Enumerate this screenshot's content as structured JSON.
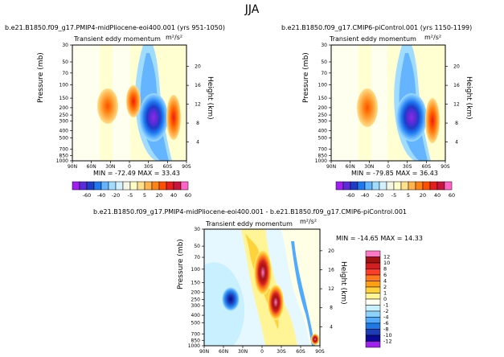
{
  "super_title": "JJA",
  "units": "m²/s²",
  "panels": [
    {
      "id": "mid-pliocene",
      "case": "b.e21.B1850.f09_g17.PMIP4-midPliocene-eoi400.001",
      "years": "(yrs 951-1050)",
      "title": "Transient eddy momentum",
      "min_max": "MIN = -72.49   MAX = 33.43"
    },
    {
      "id": "pi-control",
      "case": "b.e21.B1850.f09_g17.CMIP6-piControl.001",
      "years": "(yrs 1150-1199)",
      "title": "Transient eddy momentum",
      "min_max": "MIN = -79.85   MAX = 36.43"
    },
    {
      "id": "difference",
      "case": "b.e21.B1850.f09_g17.PMIP4-midPliocene-eoi400.001  -  b.e21.B1850.f09_g17.CMIP6-piControl.001",
      "title": "Transient eddy momentum",
      "min_max": "MIN = -14.65   MAX = 14.33"
    }
  ],
  "axis": {
    "ylabel": "Pressure (mb)",
    "right_label": "Height (km)"
  },
  "chart_data": [
    {
      "type": "heatmap",
      "name": "midPliocene transient eddy momentum",
      "x_ticks": [
        "90N",
        "60N",
        "30N",
        "0",
        "30S",
        "60S",
        "90S"
      ],
      "y_ticks": [
        30,
        50,
        70,
        100,
        150,
        200,
        250,
        300,
        400,
        500,
        700,
        850,
        1000
      ],
      "height_ticks": [
        4,
        8,
        12,
        16,
        20
      ],
      "ylim": [
        1000,
        30
      ],
      "min": -72.49,
      "max": 33.43,
      "levels": [
        -60,
        -40,
        -20,
        -5,
        5,
        20,
        40,
        60
      ]
    },
    {
      "type": "heatmap",
      "name": "piControl transient eddy momentum",
      "x_ticks": [
        "90N",
        "60N",
        "30N",
        "0",
        "30S",
        "60S",
        "90S"
      ],
      "y_ticks": [
        30,
        50,
        70,
        100,
        150,
        200,
        250,
        300,
        400,
        500,
        700,
        850,
        1000
      ],
      "height_ticks": [
        4,
        8,
        12,
        16,
        20
      ],
      "ylim": [
        1000,
        30
      ],
      "min": -79.85,
      "max": 36.43,
      "levels": [
        -60,
        -40,
        -20,
        -5,
        5,
        20,
        40,
        60
      ]
    },
    {
      "type": "heatmap",
      "name": "difference transient eddy momentum",
      "x_ticks": [
        "90N",
        "60N",
        "30N",
        "0",
        "30S",
        "60S",
        "90S"
      ],
      "y_ticks": [
        30,
        50,
        70,
        100,
        150,
        200,
        250,
        300,
        400,
        500,
        700,
        850,
        1000
      ],
      "height_ticks": [
        4,
        8,
        12,
        16,
        20
      ],
      "ylim": [
        1000,
        30
      ],
      "min": -14.65,
      "max": 14.33,
      "levels": [
        -12,
        -10,
        -8,
        -6,
        -4,
        -2,
        -1,
        0,
        1,
        2,
        4,
        6,
        8,
        10,
        12
      ]
    }
  ],
  "colorbar_top": {
    "labels": [
      "-60",
      "-40",
      "-20",
      "-5",
      "5",
      "20",
      "40",
      "60"
    ],
    "colors": [
      "#a020f0",
      "#5a2bd8",
      "#1e3cc8",
      "#1e78f0",
      "#64b4ff",
      "#a0dcff",
      "#d2f0ff",
      "#f5f5e6",
      "#ffffc8",
      "#ffe08c",
      "#ffb450",
      "#ff8214",
      "#ff5000",
      "#e61e1e",
      "#c8143c",
      "#ff64c8"
    ]
  },
  "colorbar_diff": {
    "labels": [
      "12",
      "10",
      "8",
      "6",
      "4",
      "2",
      "1",
      "0",
      "-1",
      "-2",
      "-4",
      "-6",
      "-8",
      "-10",
      "-12"
    ],
    "colors": [
      "#ff78c8",
      "#a01414",
      "#d21e1e",
      "#ff3c28",
      "#ff781e",
      "#ffa014",
      "#ffd23c",
      "#fff596",
      "#fffff0",
      "#c8f0ff",
      "#8cd2ff",
      "#50aaff",
      "#1e78e6",
      "#1e3cb4",
      "#0a0a96",
      "#a020f0"
    ]
  }
}
